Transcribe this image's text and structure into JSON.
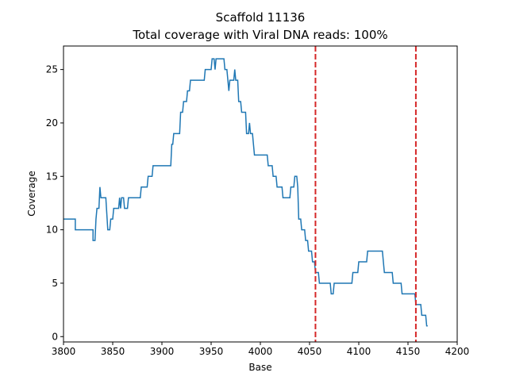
{
  "chart_data": {
    "type": "line",
    "title": "Scaffold 11136",
    "subtitle": "Total coverage with Viral DNA reads: 100%",
    "x_label": "Base",
    "y_label": "Coverage",
    "x": [
      3800,
      3812,
      3812,
      3830,
      3830,
      3832,
      3833,
      3834,
      3836,
      3837,
      3838,
      3843,
      3845,
      3847,
      3848,
      3850,
      3851,
      3856,
      3857,
      3858,
      3859,
      3861,
      3862,
      3865,
      3866,
      3878,
      3879,
      3885,
      3886,
      3890,
      3891,
      3909,
      3910,
      3911,
      3912,
      3918,
      3919,
      3921,
      3922,
      3925,
      3926,
      3928,
      3929,
      3943,
      3944,
      3950,
      3951,
      3953,
      3954,
      3955,
      3963,
      3964,
      3966,
      3967,
      3968,
      3969,
      3973,
      3974,
      3975,
      3977,
      3978,
      3980,
      3981,
      3985,
      3986,
      3988,
      3989,
      3990,
      3992,
      3993,
      3994,
      4007,
      4008,
      4012,
      4013,
      4016,
      4017,
      4022,
      4023,
      4030,
      4031,
      4034,
      4035,
      4037,
      4038,
      4039,
      4041,
      4042,
      4045,
      4046,
      4048,
      4049,
      4052,
      4053,
      4055,
      4056,
      4059,
      4060,
      4071,
      4072,
      4074,
      4075,
      4093,
      4094,
      4099,
      4100,
      4108,
      4109,
      4124,
      4125,
      4126,
      4134,
      4135,
      4143,
      4144,
      4157,
      4158,
      4163,
      4164,
      4168,
      4169,
      4170
    ],
    "series": [
      {
        "color": "#1f77b4",
        "values": [
          11,
          11,
          10,
          10,
          9,
          9,
          11,
          12,
          12,
          14,
          13,
          13,
          10,
          10,
          11,
          11,
          12,
          12,
          13,
          12,
          13,
          13,
          12,
          12,
          13,
          13,
          14,
          14,
          15,
          15,
          16,
          16,
          18,
          18,
          19,
          19,
          21,
          21,
          22,
          22,
          23,
          23,
          24,
          24,
          25,
          25,
          26,
          26,
          25,
          26,
          26,
          25,
          25,
          24,
          23,
          24,
          24,
          25,
          24,
          24,
          22,
          22,
          21,
          21,
          19,
          19,
          20,
          19,
          19,
          18,
          17,
          17,
          16,
          16,
          15,
          15,
          14,
          14,
          13,
          13,
          14,
          14,
          15,
          15,
          14,
          11,
          11,
          10,
          10,
          9,
          9,
          8,
          8,
          7,
          7,
          6,
          6,
          5,
          5,
          4,
          4,
          5,
          5,
          6,
          6,
          7,
          7,
          8,
          8,
          7,
          6,
          6,
          5,
          5,
          4,
          4,
          3,
          3,
          2,
          2,
          1,
          1
        ]
      }
    ],
    "vlines": [
      4056,
      4158
    ],
    "vline_color": "#d62728",
    "xlim": [
      3800,
      4200
    ],
    "xticks": [
      3800,
      3850,
      3900,
      3950,
      4000,
      4050,
      4100,
      4150,
      4200
    ],
    "ylim": [
      -0.5,
      27.2
    ],
    "yticks": [
      0,
      5,
      10,
      15,
      20,
      25
    ]
  }
}
